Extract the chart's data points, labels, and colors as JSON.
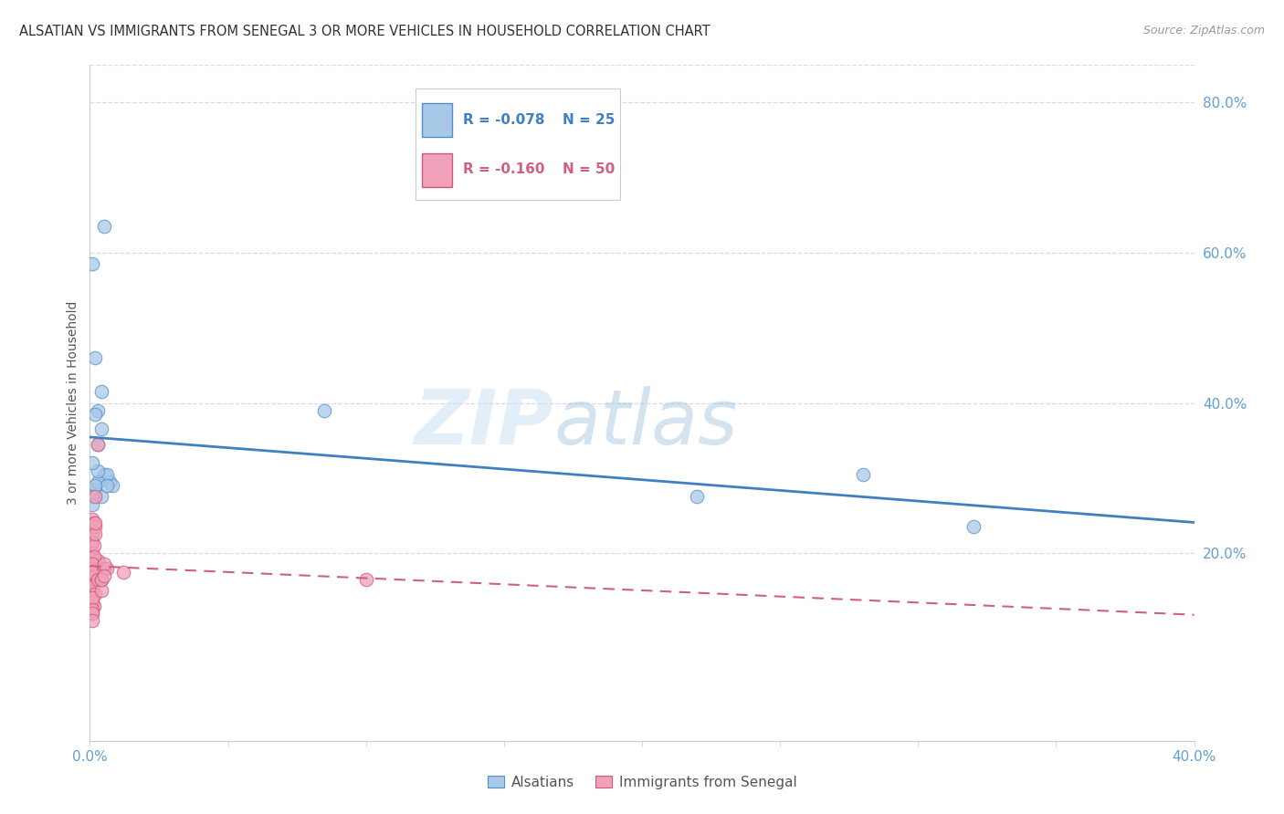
{
  "title": "ALSATIAN VS IMMIGRANTS FROM SENEGAL 3 OR MORE VEHICLES IN HOUSEHOLD CORRELATION CHART",
  "source": "Source: ZipAtlas.com",
  "ylabel": "3 or more Vehicles in Household",
  "watermark_zip": "ZIP",
  "watermark_atlas": "atlas",
  "legend_blue_r": "R = -0.078",
  "legend_blue_n": "N = 25",
  "legend_pink_r": "R = -0.160",
  "legend_pink_n": "N = 50",
  "blue_color": "#A8C8E8",
  "pink_color": "#F0A0B8",
  "blue_edge_color": "#5090C8",
  "pink_edge_color": "#D05878",
  "blue_line_color": "#4080C0",
  "pink_line_color": "#D06080",
  "axis_tick_color": "#60A0D0",
  "grid_color": "#D8D8E8",
  "title_color": "#333333",
  "source_color": "#999999",
  "ylabel_color": "#555555",
  "blue_x": [
    0.001,
    0.005,
    0.002,
    0.003,
    0.004,
    0.002,
    0.003,
    0.004,
    0.005,
    0.007,
    0.002,
    0.006,
    0.003,
    0.008,
    0.004,
    0.006,
    0.003,
    0.002,
    0.001,
    0.001,
    0.085,
    0.22,
    0.32,
    0.28,
    0.001
  ],
  "blue_y": [
    0.585,
    0.635,
    0.46,
    0.39,
    0.415,
    0.385,
    0.345,
    0.365,
    0.305,
    0.295,
    0.285,
    0.305,
    0.295,
    0.29,
    0.275,
    0.29,
    0.31,
    0.29,
    0.275,
    0.265,
    0.39,
    0.275,
    0.235,
    0.305,
    0.32
  ],
  "pink_x": [
    0.0005,
    0.001,
    0.0008,
    0.001,
    0.0015,
    0.002,
    0.001,
    0.0008,
    0.0015,
    0.001,
    0.001,
    0.0012,
    0.0015,
    0.001,
    0.001,
    0.001,
    0.0015,
    0.002,
    0.003,
    0.001,
    0.001,
    0.001,
    0.001,
    0.0015,
    0.002,
    0.001,
    0.002,
    0.003,
    0.002,
    0.0015,
    0.001,
    0.001,
    0.003,
    0.002,
    0.0015,
    0.001,
    0.001,
    0.001,
    0.001,
    0.001,
    0.001,
    0.005,
    0.006,
    0.005,
    0.004,
    0.012,
    0.004,
    0.004,
    0.005,
    0.1
  ],
  "pink_y": [
    0.235,
    0.245,
    0.225,
    0.215,
    0.24,
    0.235,
    0.215,
    0.195,
    0.18,
    0.17,
    0.165,
    0.175,
    0.185,
    0.19,
    0.2,
    0.175,
    0.21,
    0.225,
    0.19,
    0.16,
    0.155,
    0.15,
    0.145,
    0.165,
    0.17,
    0.155,
    0.24,
    0.345,
    0.275,
    0.195,
    0.185,
    0.175,
    0.165,
    0.145,
    0.13,
    0.12,
    0.135,
    0.14,
    0.125,
    0.12,
    0.11,
    0.18,
    0.18,
    0.185,
    0.15,
    0.175,
    0.165,
    0.165,
    0.17,
    0.165
  ],
  "xlim": [
    0.0,
    0.4
  ],
  "ylim": [
    -0.05,
    0.85
  ],
  "plot_ylim": [
    0.0,
    0.85
  ],
  "xticks": [
    0.0,
    0.05,
    0.1,
    0.15,
    0.2,
    0.25,
    0.3,
    0.35,
    0.4
  ],
  "right_yticks": [
    0.2,
    0.4,
    0.6,
    0.8
  ],
  "right_yticklabels": [
    "20.0%",
    "40.0%",
    "60.0%",
    "80.0%"
  ]
}
